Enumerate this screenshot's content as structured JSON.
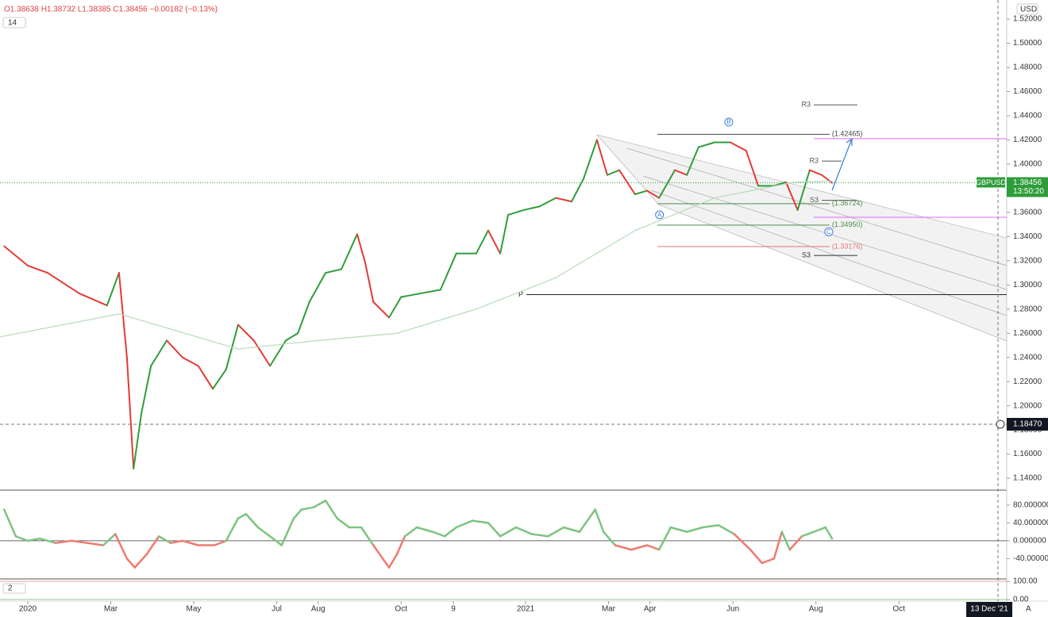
{
  "chart_data": [
    {
      "type": "line",
      "ohlc": "O1.38638 H1.38732 L1.38385 C1.38456 −0.00182 (−0.13%)",
      "indicator_label": "14",
      "currency": "USD",
      "symbol": "GBPUSD",
      "last_price": {
        "value": 1.38456,
        "label": "1.38456"
      },
      "countdown": "13:50:20",
      "auto_label": "A",
      "xlim": [
        -0.67,
        23.6
      ],
      "ylim": [
        1.1302,
        1.5358
      ],
      "xticks": [
        {
          "value": 0,
          "label": "2020"
        },
        {
          "value": 2,
          "label": "Mar"
        },
        {
          "value": 4,
          "label": "May"
        },
        {
          "value": 6,
          "label": "Jul"
        },
        {
          "value": 7,
          "label": "Aug"
        },
        {
          "value": 9,
          "label": "Oct"
        },
        {
          "value": 10.26,
          "label": "9"
        },
        {
          "value": 12,
          "label": "2021"
        },
        {
          "value": 14,
          "label": "Mar"
        },
        {
          "value": 15,
          "label": "Apr"
        },
        {
          "value": 17,
          "label": "Jun"
        },
        {
          "value": 19,
          "label": "Aug"
        },
        {
          "value": 21,
          "label": "Oct"
        }
      ],
      "yticks": [
        {
          "value": 1.14,
          "label": "1.14000"
        },
        {
          "value": 1.16,
          "label": "1.16000"
        },
        {
          "value": 1.18,
          "label": "1.18000"
        },
        {
          "value": 1.2,
          "label": "1.20000"
        },
        {
          "value": 1.22,
          "label": "1.22000"
        },
        {
          "value": 1.24,
          "label": "1.24000"
        },
        {
          "value": 1.26,
          "label": "1.26000"
        },
        {
          "value": 1.28,
          "label": "1.28000"
        },
        {
          "value": 1.3,
          "label": "1.30000"
        },
        {
          "value": 1.32,
          "label": "1.32000"
        },
        {
          "value": 1.34,
          "label": "1.34000"
        },
        {
          "value": 1.36,
          "label": "1.36000"
        },
        {
          "value": 1.38,
          "label": "1.38000"
        },
        {
          "value": 1.4,
          "label": "1.40000"
        },
        {
          "value": 1.42,
          "label": "1.42000"
        },
        {
          "value": 1.44,
          "label": "1.44000"
        },
        {
          "value": 1.46,
          "label": "1.46000"
        },
        {
          "value": 1.48,
          "label": "1.48000"
        },
        {
          "value": 1.5,
          "label": "1.50000"
        },
        {
          "value": 1.52,
          "label": "1.52000"
        }
      ],
      "up_color": "#2e9d3a",
      "down_color": "#e53935",
      "series": [
        {
          "x": [
            -0.57,
            0,
            0.48,
            1.24,
            1.91,
            2.2,
            2.39,
            2.55,
            2.74,
            2.97,
            3.35,
            3.73,
            4.11,
            4.46,
            4.78,
            5.07,
            5.45,
            5.84,
            6.22,
            6.51,
            6.79,
            7.18,
            7.56,
            7.94,
            8.13,
            8.33,
            8.71,
            9.0,
            9.47,
            9.95,
            10.33,
            10.81,
            11.1,
            11.39,
            11.58,
            11.96,
            12.34,
            12.73,
            13.11,
            13.4,
            13.72,
            13.97,
            14.26,
            14.64,
            14.93,
            15.22,
            15.6,
            15.89,
            16.17,
            16.56,
            16.94,
            17.32,
            17.61,
            17.99,
            18.28,
            18.56,
            18.85,
            19.14,
            19.39
          ],
          "values": [
            1.332,
            1.316,
            1.31,
            1.293,
            1.283,
            1.31,
            1.24,
            1.148,
            1.194,
            1.233,
            1.254,
            1.24,
            1.233,
            1.214,
            1.23,
            1.267,
            1.254,
            1.233,
            1.254,
            1.26,
            1.286,
            1.31,
            1.313,
            1.342,
            1.319,
            1.286,
            1.273,
            1.29,
            1.293,
            1.296,
            1.326,
            1.326,
            1.345,
            1.326,
            1.358,
            1.362,
            1.365,
            1.372,
            1.369,
            1.388,
            1.42,
            1.391,
            1.395,
            1.375,
            1.378,
            1.372,
            1.395,
            1.391,
            1.414,
            1.418,
            1.418,
            1.411,
            1.382,
            1.382,
            1.385,
            1.362,
            1.395,
            1.391,
            1.38456
          ],
          "directional": true
        },
        {
          "x": [
            -0.67,
            2.2,
            5.07,
            6.99,
            8.9,
            10.81,
            12.73,
            14.64,
            16.56,
            18.47,
            19.39
          ],
          "values": [
            1.257,
            1.276,
            1.247,
            1.254,
            1.26,
            1.28,
            1.306,
            1.345,
            1.372,
            1.385,
            1.386
          ],
          "color": "#b5dcb8"
        }
      ],
      "levels": [
        {
          "label": "R3",
          "value": 1.449,
          "x": [
            18.95,
            20.0
          ],
          "color": "#555",
          "label_side": "left"
        },
        {
          "label": "(1.42465)",
          "value": 1.42465,
          "x": [
            15.18,
            19.33
          ],
          "color": "#444",
          "label_side": "right"
        },
        {
          "label": "R3",
          "value": 1.4025,
          "x": [
            19.14,
            19.62
          ],
          "color": "#555",
          "label_side": "left"
        },
        {
          "label": "S3",
          "value": 1.37,
          "x": [
            19.14,
            20.0
          ],
          "color": "#555",
          "label_side": "left"
        },
        {
          "label": "(1.36724)",
          "value": 1.36724,
          "x": [
            15.18,
            19.33
          ],
          "color": "#4a8f4a",
          "label_side": "right"
        },
        {
          "label": "(1.34950)",
          "value": 1.3495,
          "x": [
            15.18,
            19.33
          ],
          "color": "#4a8f4a",
          "label_side": "right"
        },
        {
          "label": "(1.33176)",
          "value": 1.33176,
          "x": [
            15.18,
            19.33
          ],
          "color": "#e57373",
          "label_side": "right"
        },
        {
          "label": "S3",
          "value": 1.3244,
          "x": [
            18.95,
            20.0
          ],
          "color": "#333",
          "label_side": "left"
        },
        {
          "label": "P",
          "value": 1.292,
          "x": [
            12.02,
            23.6
          ],
          "color": "#222",
          "label_side": "left"
        },
        {
          "value": 1.421,
          "x": [
            18.95,
            23.6
          ],
          "color": "#e066ff"
        },
        {
          "value": 1.356,
          "x": [
            18.95,
            23.6
          ],
          "color": "#e066ff"
        }
      ],
      "waves": [
        {
          "label": "A",
          "x": 15.23,
          "y": 1.358
        },
        {
          "label": "B",
          "x": 16.9,
          "y": 1.4347
        },
        {
          "label": "C",
          "x": 19.31,
          "y": 1.344
        }
      ],
      "crosshair": {
        "x": {
          "value": 23.39,
          "label": "13 Dec '21"
        },
        "y": {
          "value": 1.1847,
          "label": "1.18470"
        }
      }
    },
    {
      "type": "line",
      "x": [
        -0.57,
        -0.29,
        0,
        0.29,
        0.67,
        1.05,
        1.44,
        1.82,
        2.11,
        2.39,
        2.58,
        2.87,
        3.16,
        3.44,
        3.73,
        4.11,
        4.5,
        4.78,
        5.07,
        5.26,
        5.55,
        5.84,
        6.12,
        6.41,
        6.6,
        6.89,
        7.18,
        7.46,
        7.75,
        8.04,
        8.33,
        8.71,
        8.9,
        9.09,
        9.38,
        9.76,
        10.05,
        10.33,
        10.72,
        11.1,
        11.39,
        11.77,
        12.15,
        12.54,
        12.92,
        13.3,
        13.68,
        13.88,
        14.16,
        14.55,
        14.93,
        15.22,
        15.5,
        15.89,
        16.27,
        16.65,
        17.03,
        17.42,
        17.7,
        17.99,
        18.18,
        18.37,
        18.66,
        18.95,
        19.23,
        19.39
      ],
      "values": [
        70,
        10,
        0,
        5,
        -5,
        0,
        -5,
        -10,
        15,
        -40,
        -60,
        -30,
        10,
        -5,
        0,
        -10,
        -10,
        0,
        50,
        60,
        30,
        10,
        -10,
        50,
        70,
        75,
        90,
        50,
        30,
        30,
        -10,
        -60,
        -30,
        10,
        30,
        20,
        10,
        30,
        45,
        40,
        10,
        30,
        15,
        10,
        30,
        20,
        70,
        20,
        -10,
        -20,
        -10,
        -20,
        30,
        20,
        30,
        35,
        15,
        -20,
        -50,
        -40,
        20,
        -20,
        10,
        20,
        30,
        5
      ],
      "pos_color": "#7cc47f",
      "neg_color": "#ef7a6f",
      "ylim": [
        -82,
        110
      ],
      "yticks": [
        {
          "value": 80,
          "label": "80.000000"
        },
        {
          "value": 40,
          "label": "40.000000"
        },
        {
          "value": 0,
          "label": "0.000000"
        },
        {
          "value": -40,
          "label": "-40.000000"
        }
      ]
    },
    {
      "type": "line",
      "label": "2",
      "ylim": [
        -9,
        109
      ],
      "yticks": [
        {
          "value": 100,
          "label": "100.00"
        },
        {
          "value": 0,
          "label": "0.00"
        }
      ]
    }
  ]
}
